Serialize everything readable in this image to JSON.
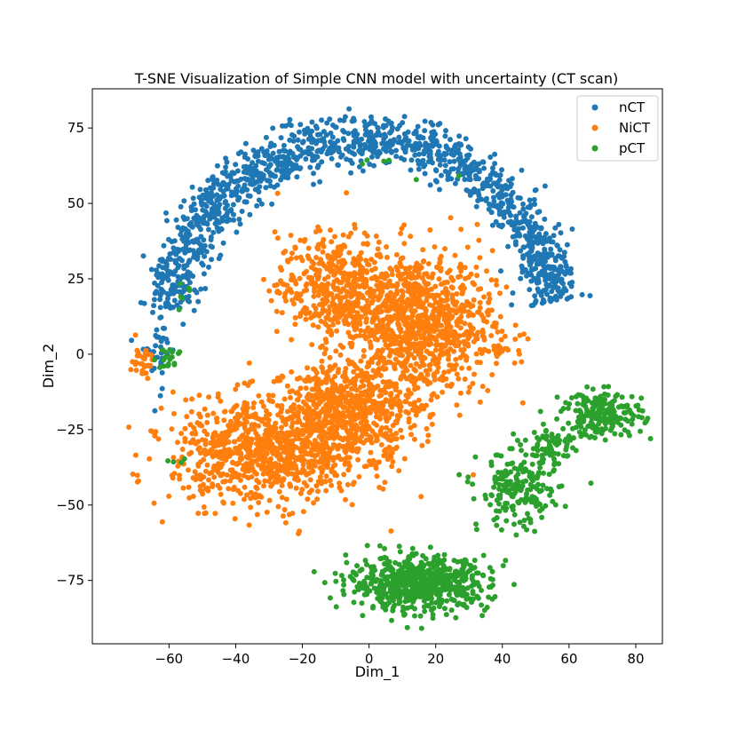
{
  "chart_data": {
    "type": "scatter",
    "title": "T-SNE Visualization of Simple CNN model with uncertainty (CT scan)",
    "xlabel": "Dim_1",
    "ylabel": "Dim_2",
    "xlim": [
      -83,
      88
    ],
    "ylim": [
      -96,
      88
    ],
    "xticks": [
      -60,
      -40,
      -20,
      0,
      20,
      40,
      60,
      80
    ],
    "yticks": [
      -75,
      -50,
      -25,
      0,
      25,
      50,
      75
    ],
    "xtick_labels": [
      "−60",
      "−40",
      "−20",
      "0",
      "20",
      "40",
      "60",
      "80"
    ],
    "ytick_labels": [
      "−75",
      "−50",
      "−25",
      "0",
      "25",
      "50",
      "75"
    ],
    "grid": false,
    "legend": {
      "placement": "top-right",
      "entries": [
        "nCT",
        "NiCT",
        "pCT"
      ]
    },
    "series": [
      {
        "name": "nCT",
        "color": "#1f77b4",
        "clusters": [
          {
            "shape": "arc",
            "cx": -2,
            "cy": 6,
            "rx": 59,
            "ry": 65,
            "angle_start": 10,
            "angle_end": 172,
            "width": 12,
            "count": 1300
          },
          {
            "shape": "blob",
            "cx": -63,
            "cy": 2,
            "rx": 5,
            "ry": 12,
            "count": 40
          },
          {
            "shape": "blob",
            "cx": 54,
            "cy": 27,
            "rx": 7,
            "ry": 7,
            "count": 70
          }
        ]
      },
      {
        "name": "NiCT",
        "color": "#ff7f0e",
        "clusters": [
          {
            "shape": "blob",
            "cx": 15,
            "cy": 10,
            "rx": 20,
            "ry": 22,
            "count": 950
          },
          {
            "shape": "blob",
            "cx": -10,
            "cy": 22,
            "rx": 16,
            "ry": 16,
            "count": 450
          },
          {
            "shape": "blob",
            "cx": -30,
            "cy": -32,
            "rx": 26,
            "ry": 16,
            "count": 950
          },
          {
            "shape": "blob",
            "cx": -5,
            "cy": -18,
            "rx": 18,
            "ry": 14,
            "count": 550
          },
          {
            "shape": "blob",
            "cx": -68,
            "cy": -2,
            "rx": 3,
            "ry": 5,
            "count": 35
          },
          {
            "shape": "blob",
            "cx": 38,
            "cy": 1,
            "rx": 3,
            "ry": 2,
            "count": 15
          }
        ]
      },
      {
        "name": "pCT",
        "color": "#2ca02c",
        "clusters": [
          {
            "shape": "blob",
            "cx": 15,
            "cy": -76,
            "rx": 19,
            "ry": 8,
            "count": 650
          },
          {
            "shape": "blob",
            "cx": 45,
            "cy": -45,
            "rx": 11,
            "ry": 12,
            "count": 200
          },
          {
            "shape": "blob",
            "cx": 70,
            "cy": -20,
            "rx": 11,
            "ry": 7,
            "count": 200
          },
          {
            "shape": "blob",
            "cx": 55,
            "cy": -30,
            "rx": 6,
            "ry": 6,
            "count": 60
          },
          {
            "shape": "blob",
            "cx": -60,
            "cy": -2,
            "rx": 4,
            "ry": 3,
            "count": 18
          },
          {
            "shape": "blob",
            "cx": -57,
            "cy": -36,
            "rx": 2,
            "ry": 1,
            "count": 4
          },
          {
            "shape": "blob",
            "cx": -55,
            "cy": 20,
            "rx": 3,
            "ry": 4,
            "count": 6
          },
          {
            "shape": "blob",
            "cx": 8,
            "cy": 60,
            "rx": 14,
            "ry": 6,
            "count": 6
          }
        ]
      }
    ]
  }
}
